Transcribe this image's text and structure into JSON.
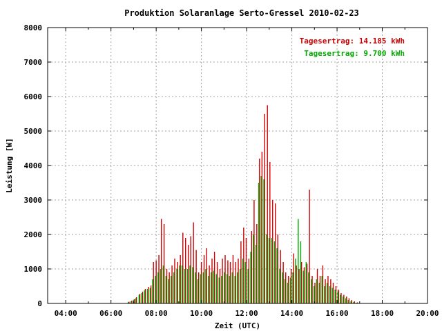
{
  "chart_data": {
    "type": "bar",
    "title": "Produktion Solaranlage Serto-Gressel 2010-02-23",
    "xlabel": "Zeit (UTC)",
    "ylabel": "Leistung [W]",
    "xlim": [
      3.2,
      20.0
    ],
    "ylim": [
      0,
      8000
    ],
    "x_ticks": [
      {
        "value": 4,
        "label": "04:00"
      },
      {
        "value": 6,
        "label": "06:00"
      },
      {
        "value": 8,
        "label": "08:00"
      },
      {
        "value": 10,
        "label": "10:00"
      },
      {
        "value": 12,
        "label": "12:00"
      },
      {
        "value": 14,
        "label": "14:00"
      },
      {
        "value": 16,
        "label": "16:00"
      },
      {
        "value": 18,
        "label": "18:00"
      },
      {
        "value": 20,
        "label": "20:00"
      }
    ],
    "y_ticks": [
      {
        "value": 0,
        "label": "0"
      },
      {
        "value": 1000,
        "label": "1000"
      },
      {
        "value": 2000,
        "label": "2000"
      },
      {
        "value": 3000,
        "label": "3000"
      },
      {
        "value": 4000,
        "label": "4000"
      },
      {
        "value": 5000,
        "label": "5000"
      },
      {
        "value": 6000,
        "label": "6000"
      },
      {
        "value": 7000,
        "label": "7000"
      },
      {
        "value": 8000,
        "label": "8000"
      }
    ],
    "grid": true,
    "legend_position": "top-right",
    "series": [
      {
        "label": "Tagesertrag: 14.185 kWh",
        "color": "#cc0000",
        "x": [
          6.8,
          6.92,
          7.03,
          7.13,
          7.28,
          7.4,
          7.52,
          7.65,
          7.77,
          7.88,
          8.0,
          8.12,
          8.23,
          8.35,
          8.47,
          8.58,
          8.7,
          8.82,
          8.95,
          9.07,
          9.18,
          9.3,
          9.42,
          9.53,
          9.65,
          9.77,
          9.88,
          10.0,
          10.12,
          10.23,
          10.35,
          10.47,
          10.58,
          10.7,
          10.82,
          10.93,
          11.05,
          11.17,
          11.28,
          11.4,
          11.52,
          11.63,
          11.75,
          11.87,
          11.98,
          12.1,
          12.22,
          12.33,
          12.45,
          12.57,
          12.68,
          12.8,
          12.92,
          13.03,
          13.15,
          13.27,
          13.38,
          13.5,
          13.62,
          13.73,
          13.85,
          13.97,
          14.08,
          14.2,
          14.32,
          14.43,
          14.55,
          14.67,
          14.78,
          14.9,
          15.02,
          15.13,
          15.25,
          15.37,
          15.48,
          15.6,
          15.72,
          15.83,
          15.95,
          16.07,
          16.18,
          16.3,
          16.42,
          16.53,
          16.65,
          16.77,
          16.9
        ],
        "values": [
          50,
          80,
          120,
          180,
          280,
          340,
          420,
          480,
          520,
          1200,
          1250,
          1400,
          2450,
          2300,
          1000,
          900,
          1100,
          1300,
          1200,
          1400,
          2050,
          1900,
          1700,
          1950,
          2350,
          1550,
          900,
          1200,
          1400,
          1600,
          1100,
          1300,
          1500,
          1200,
          1000,
          1300,
          1400,
          1250,
          1200,
          1400,
          1200,
          1300,
          1800,
          2200,
          1900,
          1300,
          2100,
          3000,
          2300,
          4200,
          4400,
          5500,
          5750,
          4100,
          3000,
          2900,
          2000,
          1550,
          1200,
          900,
          800,
          1000,
          1450,
          1100,
          1000,
          1200,
          1050,
          1150,
          3300,
          800,
          600,
          1000,
          800,
          1100,
          700,
          800,
          700,
          600,
          500,
          400,
          300,
          250,
          200,
          150,
          100,
          60,
          30
        ]
      },
      {
        "label": "Tagesertrag: 9.700 kWh",
        "color": "#00aa00",
        "x": [
          6.8,
          6.92,
          7.03,
          7.13,
          7.28,
          7.4,
          7.52,
          7.65,
          7.77,
          7.88,
          8.0,
          8.12,
          8.23,
          8.35,
          8.47,
          8.58,
          8.7,
          8.82,
          8.95,
          9.07,
          9.18,
          9.3,
          9.42,
          9.53,
          9.65,
          9.77,
          9.88,
          10.0,
          10.12,
          10.23,
          10.35,
          10.47,
          10.58,
          10.7,
          10.82,
          10.93,
          11.05,
          11.17,
          11.28,
          11.4,
          11.52,
          11.63,
          11.75,
          11.87,
          11.98,
          12.1,
          12.22,
          12.33,
          12.45,
          12.57,
          12.68,
          12.8,
          12.92,
          13.03,
          13.15,
          13.27,
          13.38,
          13.5,
          13.62,
          13.73,
          13.85,
          13.97,
          14.08,
          14.2,
          14.32,
          14.43,
          14.55,
          14.67,
          14.78,
          14.9,
          15.02,
          15.13,
          15.25,
          15.37,
          15.48,
          15.6,
          15.72,
          15.83,
          15.95,
          16.07,
          16.18,
          16.3,
          16.42,
          16.53,
          16.65,
          16.77,
          16.9
        ],
        "values": [
          40,
          60,
          100,
          150,
          250,
          300,
          380,
          420,
          450,
          700,
          800,
          900,
          1000,
          1100,
          800,
          700,
          800,
          900,
          1000,
          1100,
          1100,
          1000,
          1000,
          1100,
          1050,
          900,
          700,
          850,
          900,
          1000,
          800,
          900,
          950,
          850,
          750,
          800,
          900,
          850,
          800,
          900,
          800,
          900,
          1000,
          1300,
          1200,
          1000,
          1500,
          2000,
          1700,
          3500,
          3700,
          3600,
          2000,
          1900,
          1900,
          1800,
          1600,
          1000,
          900,
          700,
          600,
          750,
          900,
          1300,
          2450,
          1800,
          950,
          1200,
          900,
          700,
          500,
          700,
          600,
          800,
          500,
          600,
          500,
          450,
          400,
          350,
          250,
          200,
          150,
          100,
          60,
          40,
          20
        ]
      }
    ]
  }
}
